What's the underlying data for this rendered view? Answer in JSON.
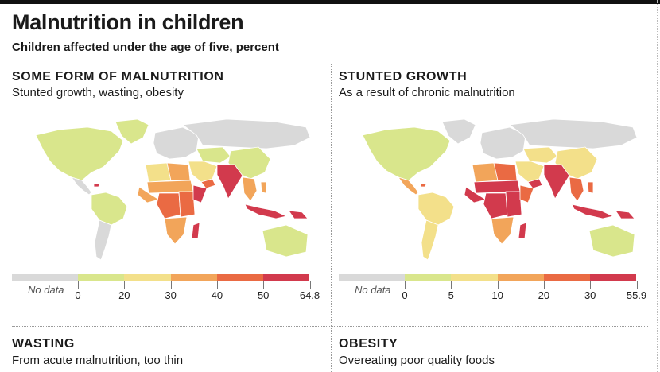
{
  "title": "Malnutrition in children",
  "subtitle": "Children affected under the age of five, percent",
  "colors": {
    "nodata": "#d9d9d9",
    "c1": "#d9e68c",
    "c2": "#f3e08a",
    "c3": "#f2a55a",
    "c4": "#ea6a43",
    "c5": "#d23a4d"
  },
  "panels": [
    {
      "title": "SOME FORM OF MALNUTRITION",
      "subtitle": "Stunted growth, wasting, obesity",
      "legend": {
        "nodata_label": "No data",
        "ticks": [
          "0",
          "20",
          "30",
          "40",
          "50",
          "64.8"
        ]
      },
      "region_classes": {
        "north-america": "c1",
        "greenland": "c1",
        "central-america": "nodata",
        "haiti": "c5",
        "south-america-north": "c1",
        "south-america-south": "nodata",
        "europe": "nodata",
        "russia": "nodata",
        "central-asia": "c1",
        "china": "c1",
        "middle-east": "c2",
        "yemen": "c4",
        "south-asia": "c5",
        "southeast-asia": "c3",
        "indonesia": "c5",
        "png": "c5",
        "philippines": "c3",
        "north-africa-west": "c2",
        "north-africa-east": "c3",
        "sahel": "c3",
        "west-africa": "c3",
        "central-africa": "c4",
        "east-africa": "c4",
        "horn": "c5",
        "southern-africa": "c3",
        "madagascar": "c5",
        "australia": "c1"
      }
    },
    {
      "title": "STUNTED GROWTH",
      "subtitle": "As a result of chronic malnutrition",
      "legend": {
        "nodata_label": "No data",
        "ticks": [
          "0",
          "5",
          "10",
          "20",
          "30",
          "55.9"
        ]
      },
      "region_classes": {
        "north-america": "c1",
        "greenland": "nodata",
        "central-america": "c3",
        "haiti": "c4",
        "south-america-north": "c2",
        "south-america-south": "c2",
        "europe": "nodata",
        "russia": "nodata",
        "central-asia": "c2",
        "china": "c2",
        "middle-east": "c2",
        "yemen": "c5",
        "south-asia": "c5",
        "southeast-asia": "c4",
        "indonesia": "c5",
        "png": "c5",
        "philippines": "c4",
        "north-africa-west": "c3",
        "north-africa-east": "c4",
        "sahel": "c5",
        "west-africa": "c5",
        "central-africa": "c5",
        "east-africa": "c5",
        "horn": "c4",
        "southern-africa": "c3",
        "madagascar": "c5",
        "australia": "c1"
      }
    },
    {
      "title": "WASTING",
      "subtitle": "From acute malnutrition, too thin"
    },
    {
      "title": "OBESITY",
      "subtitle": "Overeating poor quality foods"
    }
  ]
}
